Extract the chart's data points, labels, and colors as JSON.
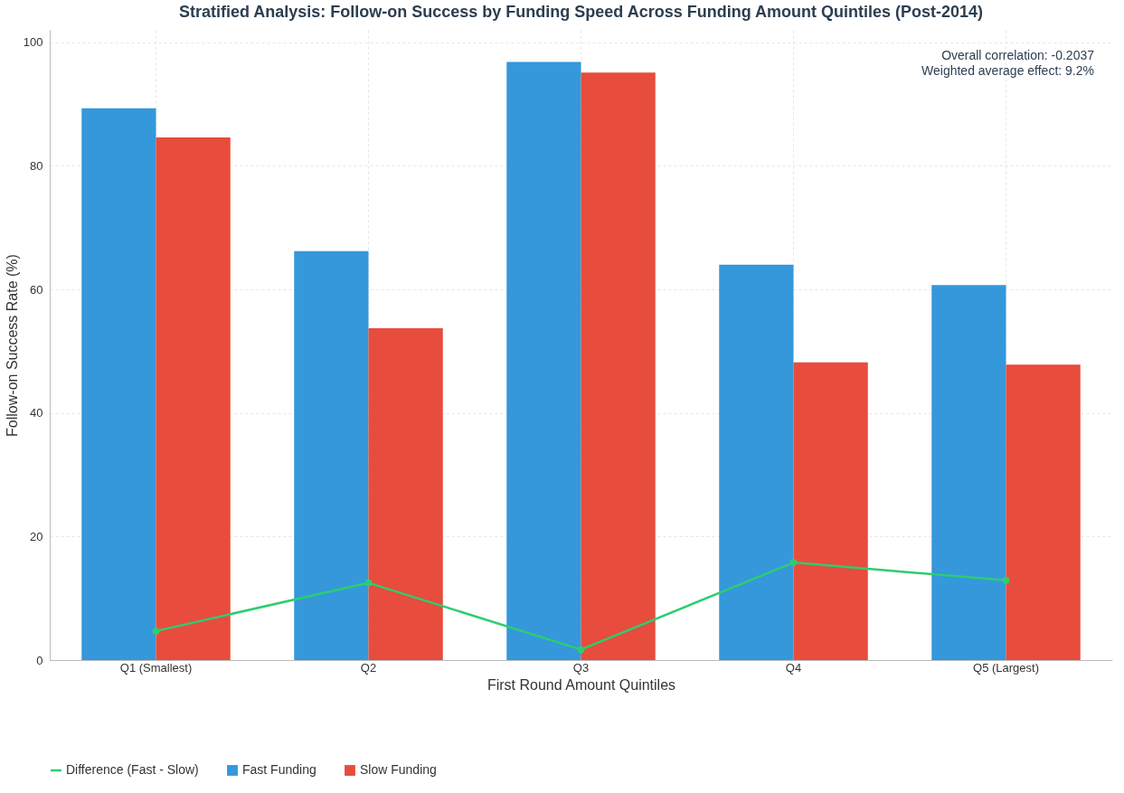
{
  "chart_data": {
    "type": "bar",
    "title": "Stratified Analysis: Follow-on Success by Funding Speed Across Funding Amount Quintiles (Post-2014)",
    "xlabel": "First Round Amount Quintiles",
    "ylabel": "Follow-on Success Rate (%)",
    "categories": [
      "Q1 (Smallest)",
      "Q2",
      "Q3",
      "Q4",
      "Q5 (Largest)"
    ],
    "series": [
      {
        "name": "Fast Funding",
        "color": "#3498db",
        "values": [
          89.3,
          66.2,
          96.8,
          64.0,
          60.7
        ]
      },
      {
        "name": "Slow Funding",
        "color": "#e74c3c",
        "values": [
          84.6,
          53.7,
          95.1,
          48.2,
          47.8
        ]
      },
      {
        "name": "Difference (Fast - Slow)",
        "type": "line",
        "color": "#2ecc71",
        "marker": "circle",
        "line_style": "solid",
        "values": [
          4.7,
          12.5,
          1.7,
          15.8,
          12.9
        ]
      }
    ],
    "ylim": [
      0,
      102
    ],
    "yticks": [
      0,
      20,
      40,
      60,
      80,
      100
    ],
    "grid": true,
    "legend": "bottom",
    "annotations": [
      "Overall correlation: -0.2037\nWeighted average effect: 9.2%"
    ]
  }
}
